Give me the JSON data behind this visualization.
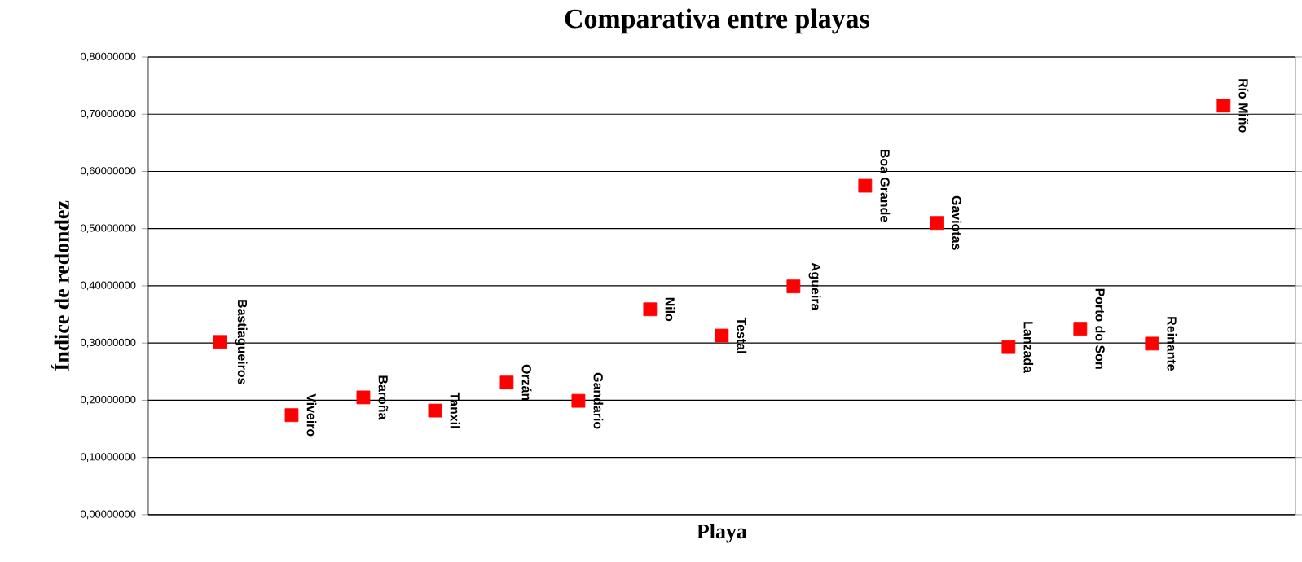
{
  "chart_data": {
    "type": "scatter",
    "title": "Comparativa entre playas",
    "xlabel": "Playa",
    "ylabel": "Índice de redondez",
    "categories": [
      "Bastiagueiros",
      "Viveiro",
      "Baroña",
      "Tanxil",
      "Orzán",
      "Gandario",
      "Nilo",
      "Testal",
      "Agueira",
      "Boa Grande",
      "Gaviotas",
      "Lanzada",
      "Porto do Son",
      "Reinante",
      "Río Miño"
    ],
    "values": [
      0.302,
      0.174,
      0.205,
      0.182,
      0.231,
      0.199,
      0.359,
      0.313,
      0.399,
      0.575,
      0.51,
      0.293,
      0.325,
      0.299,
      0.715
    ],
    "color": "#ff0000",
    "marker": "square",
    "grid": "y",
    "tick_labels": "y",
    "ylim": [
      0,
      0.8
    ],
    "yticks": [
      {
        "value": 0,
        "label": "0,00000000"
      },
      {
        "value": 0.1,
        "label": "0,10000000"
      },
      {
        "value": 0.2,
        "label": "0,20000000"
      },
      {
        "value": 0.3,
        "label": "0,30000000"
      },
      {
        "value": 0.4,
        "label": "0,40000000"
      },
      {
        "value": 0.5,
        "label": "0,50000000"
      },
      {
        "value": 0.6,
        "label": "0,60000000"
      },
      {
        "value": 0.7,
        "label": "0,70000000"
      },
      {
        "value": 0.8,
        "label": "0,80000000"
      }
    ]
  }
}
